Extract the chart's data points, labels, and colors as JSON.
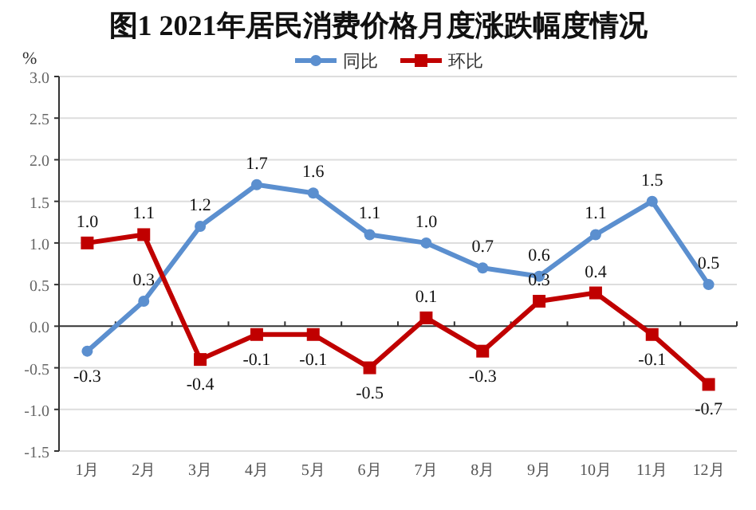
{
  "chart_data": {
    "type": "line",
    "title": "图1  2021年居民消费价格月度涨跌幅度情况",
    "ylabel": "%",
    "categories": [
      "1月",
      "2月",
      "3月",
      "4月",
      "5月",
      "6月",
      "7月",
      "8月",
      "9月",
      "10月",
      "11月",
      "12月"
    ],
    "series": [
      {
        "name": "同比",
        "color": "#5b8fcf",
        "marker": "circle",
        "values": [
          -0.3,
          0.3,
          1.2,
          1.7,
          1.6,
          1.1,
          1.0,
          0.7,
          0.6,
          1.1,
          1.5,
          0.5
        ],
        "value_labels": [
          "-0.3",
          "0.3",
          "1.2",
          "1.7",
          "1.6",
          "1.1",
          "1.0",
          "0.7",
          "0.6",
          "1.1",
          "1.5",
          "0.5"
        ]
      },
      {
        "name": "环比",
        "color": "#c00000",
        "marker": "square",
        "values": [
          1.0,
          1.1,
          -0.4,
          -0.1,
          -0.1,
          -0.5,
          0.1,
          -0.3,
          0.3,
          0.4,
          -0.1,
          -0.7
        ],
        "value_labels": [
          "1.0",
          "1.1",
          "-0.4",
          "-0.1",
          "-0.1",
          "-0.5",
          "0.1",
          "-0.3",
          "0.3",
          "0.4",
          "-0.1",
          "-0.7"
        ]
      }
    ],
    "ylim": [
      -1.5,
      3.0
    ],
    "yticks": [
      {
        "value": -1.5,
        "label": "-1.5"
      },
      {
        "value": -1.0,
        "label": "-1.0"
      },
      {
        "value": -0.5,
        "label": "-0.5"
      },
      {
        "value": 0,
        "label": "0.0"
      },
      {
        "value": 0.5,
        "label": "0.5"
      },
      {
        "value": 1.0,
        "label": "1.0"
      },
      {
        "value": 1.5,
        "label": "1.5"
      },
      {
        "value": 2.0,
        "label": "2.0"
      },
      {
        "value": 2.5,
        "label": "2.5"
      },
      {
        "value": 3.0,
        "label": "3.0"
      }
    ],
    "grid": "y",
    "legend": "top",
    "line_style": "solid"
  }
}
